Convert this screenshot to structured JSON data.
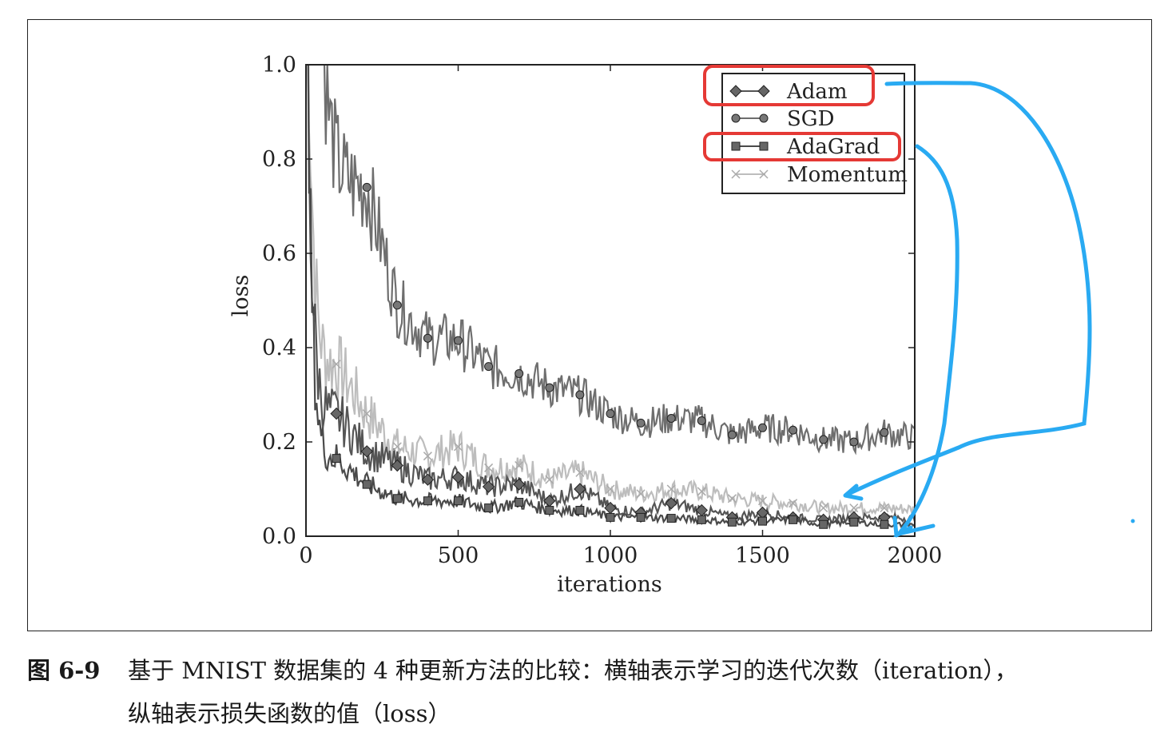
{
  "chart_data": {
    "type": "line",
    "title": "",
    "xlabel": "iterations",
    "ylabel": "loss",
    "xlim": [
      0,
      2000
    ],
    "ylim": [
      0.0,
      1.0
    ],
    "x_ticks": [
      "0",
      "500",
      "1000",
      "1500",
      "2000"
    ],
    "y_ticks": [
      "0.0",
      "0.2",
      "0.4",
      "0.6",
      "0.8",
      "1.0"
    ],
    "grid": false,
    "legend_position": "top-right",
    "series": [
      {
        "name": "Adam",
        "marker": "diamond",
        "color": "#555555",
        "markers": [
          {
            "x": 100,
            "y": 0.26
          },
          {
            "x": 200,
            "y": 0.18
          },
          {
            "x": 300,
            "y": 0.15
          },
          {
            "x": 400,
            "y": 0.12
          },
          {
            "x": 500,
            "y": 0.125
          },
          {
            "x": 600,
            "y": 0.105
          },
          {
            "x": 700,
            "y": 0.11
          },
          {
            "x": 800,
            "y": 0.075
          },
          {
            "x": 900,
            "y": 0.1
          },
          {
            "x": 1000,
            "y": 0.06
          },
          {
            "x": 1100,
            "y": 0.05
          },
          {
            "x": 1200,
            "y": 0.07
          },
          {
            "x": 1300,
            "y": 0.055
          },
          {
            "x": 1400,
            "y": 0.04
          },
          {
            "x": 1500,
            "y": 0.05
          },
          {
            "x": 1600,
            "y": 0.04
          },
          {
            "x": 1700,
            "y": 0.035
          },
          {
            "x": 1800,
            "y": 0.04
          },
          {
            "x": 1900,
            "y": 0.04
          }
        ]
      },
      {
        "name": "SGD",
        "marker": "circle",
        "color": "#6e6e6e",
        "markers": [
          {
            "x": 200,
            "y": 0.74
          },
          {
            "x": 300,
            "y": 0.49
          },
          {
            "x": 400,
            "y": 0.42
          },
          {
            "x": 500,
            "y": 0.415
          },
          {
            "x": 600,
            "y": 0.36
          },
          {
            "x": 700,
            "y": 0.345
          },
          {
            "x": 800,
            "y": 0.315
          },
          {
            "x": 900,
            "y": 0.3
          },
          {
            "x": 1000,
            "y": 0.26
          },
          {
            "x": 1100,
            "y": 0.24
          },
          {
            "x": 1200,
            "y": 0.25
          },
          {
            "x": 1300,
            "y": 0.245
          },
          {
            "x": 1400,
            "y": 0.215
          },
          {
            "x": 1500,
            "y": 0.23
          },
          {
            "x": 1600,
            "y": 0.225
          },
          {
            "x": 1700,
            "y": 0.205
          },
          {
            "x": 1800,
            "y": 0.2
          },
          {
            "x": 1900,
            "y": 0.22
          }
        ]
      },
      {
        "name": "AdaGrad",
        "marker": "square",
        "color": "#4a4a4a",
        "markers": [
          {
            "x": 100,
            "y": 0.165
          },
          {
            "x": 200,
            "y": 0.11
          },
          {
            "x": 300,
            "y": 0.08
          },
          {
            "x": 400,
            "y": 0.075
          },
          {
            "x": 500,
            "y": 0.075
          },
          {
            "x": 600,
            "y": 0.06
          },
          {
            "x": 700,
            "y": 0.072
          },
          {
            "x": 800,
            "y": 0.055
          },
          {
            "x": 900,
            "y": 0.055
          },
          {
            "x": 1000,
            "y": 0.04
          },
          {
            "x": 1100,
            "y": 0.04
          },
          {
            "x": 1200,
            "y": 0.038
          },
          {
            "x": 1300,
            "y": 0.035
          },
          {
            "x": 1400,
            "y": 0.03
          },
          {
            "x": 1500,
            "y": 0.032
          },
          {
            "x": 1600,
            "y": 0.035
          },
          {
            "x": 1700,
            "y": 0.025
          },
          {
            "x": 1800,
            "y": 0.03
          },
          {
            "x": 1900,
            "y": 0.025
          }
        ]
      },
      {
        "name": "Momentum",
        "marker": "x",
        "color": "#bdbdbd",
        "markers": [
          {
            "x": 100,
            "y": 0.365
          },
          {
            "x": 200,
            "y": 0.26
          },
          {
            "x": 300,
            "y": 0.19
          },
          {
            "x": 400,
            "y": 0.17
          },
          {
            "x": 500,
            "y": 0.19
          },
          {
            "x": 600,
            "y": 0.145
          },
          {
            "x": 700,
            "y": 0.15
          },
          {
            "x": 800,
            "y": 0.12
          },
          {
            "x": 900,
            "y": 0.135
          },
          {
            "x": 1000,
            "y": 0.1
          },
          {
            "x": 1100,
            "y": 0.09
          },
          {
            "x": 1200,
            "y": 0.1
          },
          {
            "x": 1300,
            "y": 0.095
          },
          {
            "x": 1400,
            "y": 0.08
          },
          {
            "x": 1500,
            "y": 0.075
          },
          {
            "x": 1600,
            "y": 0.07
          },
          {
            "x": 1700,
            "y": 0.06
          },
          {
            "x": 1800,
            "y": 0.06
          },
          {
            "x": 1900,
            "y": 0.06
          }
        ]
      }
    ],
    "annotations": [
      {
        "type": "highlight-box",
        "target_legend": "Adam",
        "color": "#e53935"
      },
      {
        "type": "highlight-box",
        "target_legend": "AdaGrad",
        "color": "#e53935"
      },
      {
        "type": "hand-drawn-arrow",
        "from_legend": "Adam",
        "color": "#29aaf2"
      },
      {
        "type": "hand-drawn-arrow",
        "from_legend": "AdaGrad",
        "color": "#29aaf2"
      }
    ]
  },
  "caption": {
    "label": "图 6-9",
    "lines": [
      "基于 MNIST 数据集的 4 种更新方法的比较：横轴表示学习的迭代次数（iteration），",
      "纵轴表示损失函数的值（loss）"
    ]
  },
  "colors": {
    "frame": "#222222",
    "highlight": "#e53935",
    "arrow": "#29aaf2"
  }
}
